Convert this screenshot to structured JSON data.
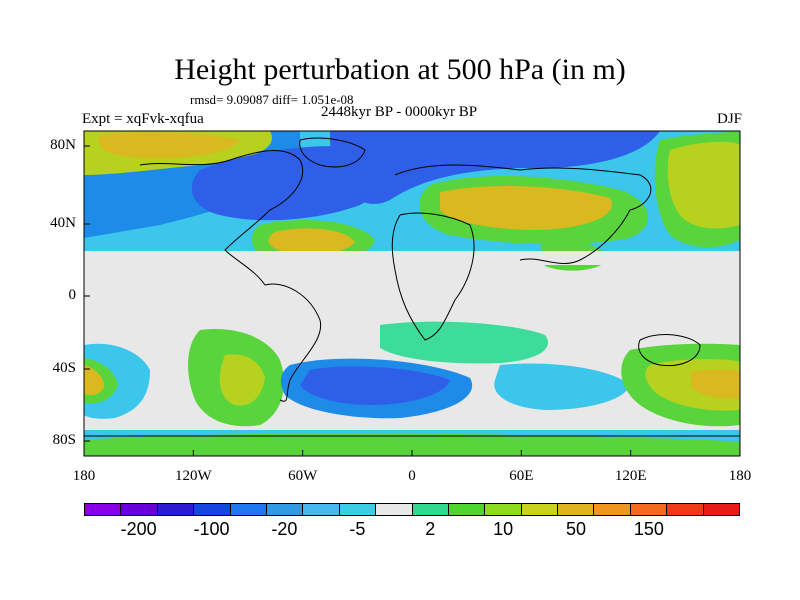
{
  "figure": {
    "title": "Height perturbation at 500 hPa (in m)",
    "stats": "rmsd= 9.09087 diff= 1.051e-08",
    "experiment": "Expt = xqFvk-xqfua",
    "period": "2448kyr BP - 0000kyr BP",
    "season": "DJF"
  },
  "axes": {
    "x_ticks": [
      "180",
      "120W",
      "60W",
      "0",
      "60E",
      "120E",
      "180"
    ],
    "y_ticks": [
      "80N",
      "40N",
      "0",
      "40S",
      "80S"
    ]
  },
  "colorbar": {
    "colors": [
      "#8a00e6",
      "#6a00d9",
      "#2c1cd1",
      "#1446e0",
      "#1f78ef",
      "#2f9ae6",
      "#47b7f0",
      "#3ccce8",
      "#e8e8e8",
      "#30d98f",
      "#4fd32d",
      "#8edb1f",
      "#c9d21c",
      "#e0b421",
      "#f09520",
      "#f46a1d",
      "#ef3a15",
      "#e81b1b"
    ],
    "labels": [
      "-200",
      "-100",
      "-20",
      "-5",
      "2",
      "10",
      "50",
      "150"
    ]
  },
  "map_palette": {
    "deep_blue": "#2f5fe8",
    "mid_blue": "#1f8be8",
    "light_blue": "#3cc6ec",
    "neutral": "#e8e8e8",
    "light_green": "#3ddc9a",
    "green": "#59d43c",
    "yellow_green": "#b6d21f",
    "ochre": "#d9b820",
    "coast": "#000000"
  }
}
